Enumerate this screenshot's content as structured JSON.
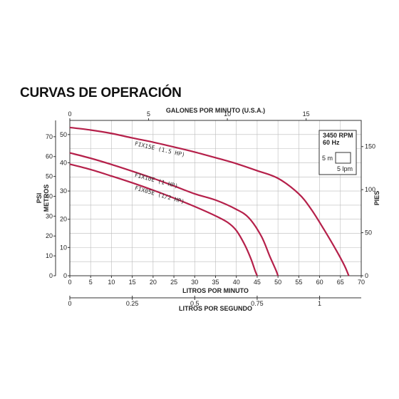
{
  "page_title": "CURVAS DE OPERACIÓN",
  "colors": {
    "curve": "#b5204a",
    "grid": "#bbbbbb",
    "axis": "#333333"
  },
  "chart_data": {
    "type": "line",
    "title": "CURVAS DE OPERACIÓN",
    "xlabel": "LITROS POR MINUTO",
    "xlim": [
      0,
      70
    ],
    "x_ticks": [
      0,
      5,
      10,
      15,
      20,
      25,
      30,
      35,
      40,
      45,
      50,
      55,
      60,
      65,
      70
    ],
    "ylabel": "METROS",
    "ylim": [
      0,
      55
    ],
    "y_ticks": [
      0,
      10,
      20,
      30,
      40,
      50
    ],
    "top_axis": {
      "label": "GALONES POR MINUTO (U.S.A.)",
      "range": [
        0,
        18.5
      ],
      "ticks": [
        0,
        5,
        10,
        15
      ]
    },
    "bottom2_axis": {
      "label": "LITROS POR SEGUNDO",
      "range": [
        0,
        1.1667
      ],
      "ticks": [
        0,
        0.25,
        0.5,
        0.75,
        1
      ]
    },
    "left_outer_axis": {
      "label": "PSI",
      "range": [
        0,
        78.2
      ],
      "ticks": [
        0,
        10,
        20,
        30,
        40,
        50,
        60,
        70
      ]
    },
    "right_axis": {
      "label": "PIES",
      "range": [
        0,
        180.4
      ],
      "ticks": [
        0,
        50,
        100,
        150
      ]
    },
    "grid": true,
    "legend_box": {
      "rpm": "3450 RPM",
      "hz": "60 Hz",
      "scale_y": "5 m",
      "scale_x": "5 lpm"
    },
    "series": [
      {
        "name": "FIX15E (1.5 HP)",
        "x": [
          0,
          5,
          10,
          15,
          20,
          25,
          30,
          35,
          40,
          45,
          50,
          55,
          58,
          61,
          64,
          66,
          67
        ],
        "y": [
          52.5,
          51.6,
          50.4,
          48.8,
          47.3,
          45.6,
          43.8,
          41.8,
          39.7,
          37.2,
          34.5,
          29,
          23.5,
          16.5,
          9,
          3.5,
          0
        ]
      },
      {
        "name": "FIX10E (1 HP)",
        "x": [
          0,
          5,
          10,
          15,
          20,
          25,
          30,
          35,
          40,
          43,
          46,
          48,
          49.5,
          50
        ],
        "y": [
          43.5,
          41.6,
          39.4,
          37,
          34.5,
          31.8,
          29,
          26.8,
          23.5,
          20.5,
          14,
          7,
          2,
          0
        ]
      },
      {
        "name": "FIX05E (1/2 HP)",
        "x": [
          0,
          5,
          10,
          15,
          20,
          25,
          30,
          35,
          38,
          40,
          42,
          43.5,
          44.5,
          45
        ],
        "y": [
          39.5,
          37.6,
          35.3,
          32.9,
          30.3,
          27.5,
          24.5,
          21.2,
          18.8,
          16,
          11,
          6,
          1.8,
          0
        ]
      }
    ]
  }
}
